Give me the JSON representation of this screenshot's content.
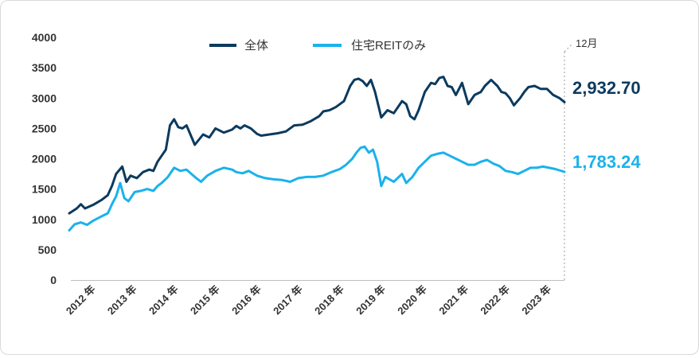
{
  "chart_data": {
    "type": "line",
    "legend_position": "top-center",
    "grid": false,
    "ylim": [
      0,
      4000
    ],
    "yticks": [
      "0",
      "500",
      "1000",
      "1500",
      "2000",
      "2500",
      "3000",
      "3500",
      "4000"
    ],
    "xticks": [
      "2012 年",
      "2013 年",
      "2014 年",
      "2015 年",
      "2016 年",
      "2017 年",
      "2018 年",
      "2019 年",
      "2020 年",
      "2021 年",
      "2022 年",
      "2023 年"
    ],
    "end_marker_label": "12月",
    "x_range": [
      2011.97,
      2023.92
    ],
    "series": [
      {
        "name": "全体",
        "color": "#0b3a5e",
        "end_value_label": "2,932.70",
        "x": [
          2011.97,
          2012.15,
          2012.25,
          2012.35,
          2012.55,
          2012.75,
          2012.9,
          2013.0,
          2013.1,
          2013.25,
          2013.35,
          2013.45,
          2013.6,
          2013.75,
          2013.9,
          2014.0,
          2014.1,
          2014.2,
          2014.3,
          2014.4,
          2014.5,
          2014.6,
          2014.7,
          2014.8,
          2015.0,
          2015.2,
          2015.35,
          2015.5,
          2015.7,
          2015.9,
          2016.0,
          2016.1,
          2016.2,
          2016.35,
          2016.5,
          2016.6,
          2016.8,
          2017.0,
          2017.2,
          2017.4,
          2017.6,
          2017.8,
          2018.0,
          2018.1,
          2018.25,
          2018.4,
          2018.6,
          2018.75,
          2018.85,
          2018.95,
          2019.05,
          2019.15,
          2019.25,
          2019.35,
          2019.5,
          2019.65,
          2019.8,
          2020.0,
          2020.1,
          2020.2,
          2020.3,
          2020.4,
          2020.55,
          2020.7,
          2020.8,
          2020.9,
          2021.0,
          2021.1,
          2021.2,
          2021.3,
          2021.45,
          2021.6,
          2021.75,
          2021.9,
          2022.0,
          2022.15,
          2022.3,
          2022.4,
          2022.5,
          2022.6,
          2022.7,
          2022.85,
          2022.95,
          2023.05,
          2023.2,
          2023.35,
          2023.5,
          2023.65,
          2023.8,
          2023.92
        ],
        "values": [
          1100,
          1180,
          1250,
          1180,
          1240,
          1320,
          1400,
          1550,
          1750,
          1870,
          1620,
          1720,
          1680,
          1780,
          1820,
          1800,
          1950,
          2050,
          2150,
          2550,
          2650,
          2520,
          2500,
          2550,
          2230,
          2400,
          2350,
          2500,
          2430,
          2480,
          2540,
          2500,
          2550,
          2500,
          2410,
          2380,
          2400,
          2420,
          2450,
          2550,
          2560,
          2620,
          2700,
          2780,
          2800,
          2850,
          2950,
          3200,
          3300,
          3320,
          3280,
          3200,
          3300,
          3100,
          2680,
          2800,
          2750,
          2950,
          2900,
          2700,
          2650,
          2800,
          3100,
          3250,
          3230,
          3330,
          3350,
          3200,
          3180,
          3050,
          3250,
          2900,
          3050,
          3100,
          3200,
          3300,
          3200,
          3100,
          3080,
          3000,
          2880,
          3000,
          3100,
          3180,
          3200,
          3150,
          3150,
          3050,
          3000,
          2932.7
        ]
      },
      {
        "name": "住宅REITのみ",
        "color": "#1ab2ec",
        "end_value_label": "1,783.24",
        "x": [
          2011.97,
          2012.1,
          2012.25,
          2012.4,
          2012.55,
          2012.75,
          2012.9,
          2013.0,
          2013.1,
          2013.2,
          2013.3,
          2013.4,
          2013.55,
          2013.7,
          2013.85,
          2014.0,
          2014.1,
          2014.2,
          2014.35,
          2014.5,
          2014.65,
          2014.8,
          2015.0,
          2015.15,
          2015.3,
          2015.5,
          2015.7,
          2015.9,
          2016.0,
          2016.15,
          2016.3,
          2016.5,
          2016.7,
          2016.9,
          2017.1,
          2017.3,
          2017.5,
          2017.7,
          2017.9,
          2018.1,
          2018.3,
          2018.5,
          2018.65,
          2018.8,
          2018.9,
          2019.0,
          2019.1,
          2019.2,
          2019.3,
          2019.4,
          2019.5,
          2019.6,
          2019.8,
          2020.0,
          2020.1,
          2020.25,
          2020.4,
          2020.55,
          2020.7,
          2020.85,
          2021.0,
          2021.15,
          2021.3,
          2021.45,
          2021.6,
          2021.75,
          2021.9,
          2022.05,
          2022.2,
          2022.35,
          2022.5,
          2022.65,
          2022.8,
          2022.95,
          2023.1,
          2023.25,
          2023.4,
          2023.55,
          2023.7,
          2023.92
        ],
        "values": [
          820,
          920,
          950,
          910,
          980,
          1050,
          1100,
          1250,
          1380,
          1600,
          1350,
          1300,
          1450,
          1470,
          1500,
          1470,
          1550,
          1600,
          1700,
          1850,
          1800,
          1820,
          1700,
          1620,
          1720,
          1800,
          1850,
          1820,
          1780,
          1760,
          1800,
          1720,
          1680,
          1660,
          1650,
          1620,
          1680,
          1700,
          1700,
          1720,
          1780,
          1830,
          1900,
          2000,
          2100,
          2180,
          2200,
          2100,
          2150,
          1950,
          1550,
          1700,
          1620,
          1750,
          1600,
          1700,
          1850,
          1950,
          2050,
          2080,
          2100,
          2050,
          2000,
          1950,
          1900,
          1900,
          1950,
          1980,
          1920,
          1880,
          1800,
          1780,
          1750,
          1800,
          1850,
          1850,
          1870,
          1850,
          1830,
          1783.24
        ]
      }
    ]
  }
}
